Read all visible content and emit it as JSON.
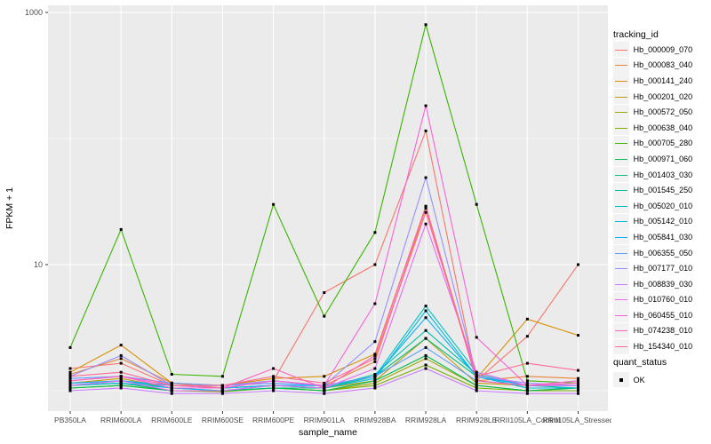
{
  "figure": {
    "background": "#FFFFFF",
    "panel_background": "#EBEBEB",
    "grid_color": "#FFFFFF",
    "tick_label_color": "#4D4D4D",
    "tick_mark_color": "#333333"
  },
  "chart_data": {
    "type": "line",
    "title": "",
    "xlabel": "sample_name",
    "ylabel": "FPKM + 1",
    "y_scale": "log10",
    "y_tick_labels": [
      "1000",
      "10"
    ],
    "y_major_breaks": [
      1000,
      10
    ],
    "y_minor_breaks": [
      100,
      1
    ],
    "ylim": [
      0.7,
      1150
    ],
    "grid": "on",
    "legend_position": "right",
    "point_marker": {
      "shape": "square",
      "color": "#000000",
      "size": 3
    },
    "categories": [
      "PB350LA",
      "RRIM600LA",
      "RRIM600LE",
      "RRIM600SE",
      "RRIM600PE",
      "RRIM901LA",
      "RRIM928BA",
      "RRIM928LA",
      "RRIM928LE",
      "RRII105LA_Control",
      "RRII105LA_Stressed"
    ],
    "series": [
      {
        "name": "Hb_000009_070",
        "color": "#F8766D",
        "values": [
          1.5,
          1.65,
          1.1,
          1.1,
          1.2,
          6,
          10,
          115,
          1.2,
          2.7,
          10
        ]
      },
      {
        "name": "Hb_000083_040",
        "color": "#EB8335",
        "values": [
          1.35,
          1.8,
          1.15,
          1.05,
          1.2,
          1.1,
          1.7,
          28,
          1.2,
          1.3,
          1.25
        ]
      },
      {
        "name": "Hb_000141_240",
        "color": "#D89000",
        "values": [
          1.4,
          2.3,
          1.15,
          1.1,
          1.25,
          1.3,
          1.95,
          29,
          1.25,
          3.7,
          2.75
        ]
      },
      {
        "name": "Hb_000201_020",
        "color": "#C09B06",
        "values": [
          1.15,
          1.25,
          1.05,
          1.05,
          1.1,
          1.05,
          1.2,
          2.6,
          1.15,
          1.1,
          1.1
        ]
      },
      {
        "name": "Hb_000572_050",
        "color": "#A3A500",
        "values": [
          1.1,
          1.15,
          1.0,
          1.0,
          1.05,
          1.0,
          1.15,
          1.8,
          1.1,
          1.0,
          1.05
        ]
      },
      {
        "name": "Hb_000638_040",
        "color": "#7CAE00",
        "values": [
          1.05,
          1.1,
          1.0,
          0.98,
          1.05,
          1.0,
          1.1,
          1.6,
          1.05,
          1.0,
          1.0
        ]
      },
      {
        "name": "Hb_000705_280",
        "color": "#39B600",
        "values": [
          2.2,
          19,
          1.35,
          1.3,
          30,
          3.9,
          18,
          800,
          30,
          1.2,
          1.15
        ]
      },
      {
        "name": "Hb_000971_060",
        "color": "#00BB4E",
        "values": [
          1.05,
          1.1,
          1.0,
          1.0,
          1.05,
          1.0,
          1.2,
          1.9,
          1.1,
          1.0,
          1.05
        ]
      },
      {
        "name": "Hb_001403_030",
        "color": "#00BF7D",
        "values": [
          1.1,
          1.15,
          1.0,
          1.0,
          1.05,
          1.05,
          1.3,
          2.6,
          1.3,
          1.05,
          1.05
        ]
      },
      {
        "name": "Hb_001545_250",
        "color": "#00C1A7",
        "values": [
          1.1,
          1.2,
          1.05,
          1.0,
          1.1,
          1.05,
          1.35,
          3.0,
          1.35,
          1.1,
          1.05
        ]
      },
      {
        "name": "Hb_005020_010",
        "color": "#00BFC4",
        "values": [
          1.1,
          1.2,
          1.05,
          1.05,
          1.1,
          1.1,
          1.3,
          4.7,
          1.4,
          1.1,
          1.1
        ]
      },
      {
        "name": "Hb_005142_010",
        "color": "#00BADE",
        "values": [
          1.1,
          1.15,
          1.05,
          1.0,
          1.1,
          1.05,
          1.25,
          4.3,
          1.3,
          1.05,
          1.05
        ]
      },
      {
        "name": "Hb_005841_030",
        "color": "#00B0F6",
        "values": [
          1.15,
          1.2,
          1.1,
          1.05,
          1.1,
          1.1,
          1.3,
          3.8,
          1.3,
          1.1,
          1.1
        ]
      },
      {
        "name": "Hb_006355_050",
        "color": "#619CFF",
        "values": [
          1.25,
          1.3,
          1.15,
          1.1,
          1.15,
          1.1,
          1.3,
          2.2,
          1.2,
          1.1,
          1.1
        ]
      },
      {
        "name": "Hb_007177_010",
        "color": "#9590FF",
        "values": [
          1.3,
          1.9,
          1.1,
          1.1,
          1.2,
          1.1,
          2.45,
          49,
          1.3,
          1.15,
          1.1
        ]
      },
      {
        "name": "Hb_008839_030",
        "color": "#C77CFF",
        "values": [
          1.0,
          1.05,
          0.95,
          0.95,
          1.0,
          0.95,
          1.05,
          1.5,
          1.0,
          0.95,
          0.95
        ]
      },
      {
        "name": "Hb_010760_010",
        "color": "#E76BF3",
        "values": [
          1.1,
          1.2,
          1.0,
          1.0,
          1.1,
          1.05,
          1.5,
          21,
          1.4,
          1.1,
          1.1
        ]
      },
      {
        "name": "Hb_060455_010",
        "color": "#FB61D7",
        "values": [
          1.2,
          1.3,
          1.05,
          1.05,
          1.2,
          1.1,
          4.9,
          182,
          2.65,
          1.1,
          1.2
        ]
      },
      {
        "name": "Hb_074238_010",
        "color": "#FF62BC",
        "values": [
          1.2,
          1.3,
          1.1,
          1.05,
          1.5,
          1.05,
          1.9,
          29,
          1.2,
          1.1,
          1.15
        ]
      },
      {
        "name": "Hb_154340_010",
        "color": "#FF6A98",
        "values": [
          1.3,
          1.4,
          1.1,
          1.1,
          1.3,
          1.15,
          1.8,
          26,
          1.3,
          1.65,
          1.45
        ]
      }
    ]
  },
  "legend": {
    "tracking_title": "tracking_id",
    "quant_title": "quant_status",
    "quant_items": [
      {
        "label": "OK"
      }
    ]
  }
}
